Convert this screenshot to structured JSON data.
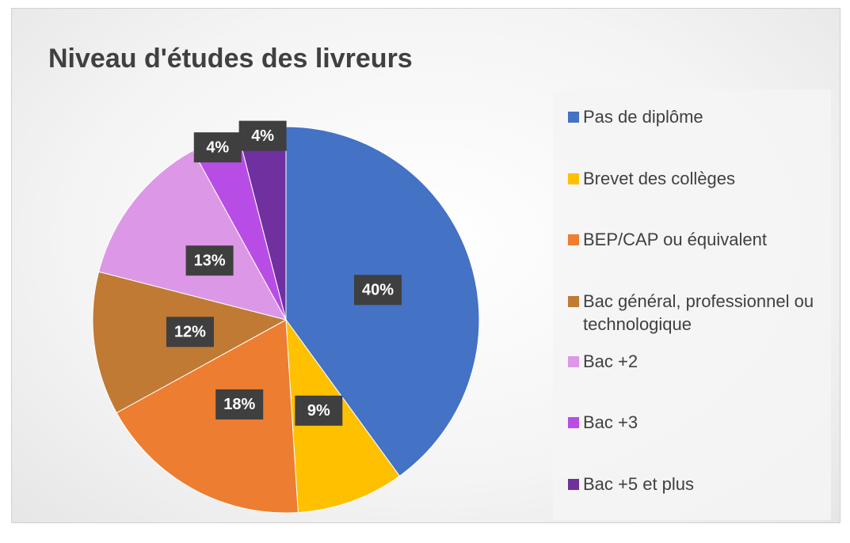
{
  "chart_data": {
    "type": "pie",
    "title": "Niveau d'études des livreurs",
    "categories": [
      "Pas de diplôme",
      "Brevet des collèges",
      "BEP/CAP ou équivalent",
      "Bac général, professionnel ou technologique",
      "Bac +2",
      "Bac +3",
      "Bac +5 et plus"
    ],
    "values": [
      40,
      9,
      18,
      12,
      13,
      4,
      4
    ],
    "value_labels": [
      "40%",
      "9%",
      "18%",
      "12%",
      "13%",
      "4%",
      "4%"
    ],
    "colors": [
      "#4472c4",
      "#ffc000",
      "#ed7d31",
      "#c07a34",
      "#dc98e6",
      "#b84de6",
      "#7030a0"
    ],
    "legend": "right"
  }
}
